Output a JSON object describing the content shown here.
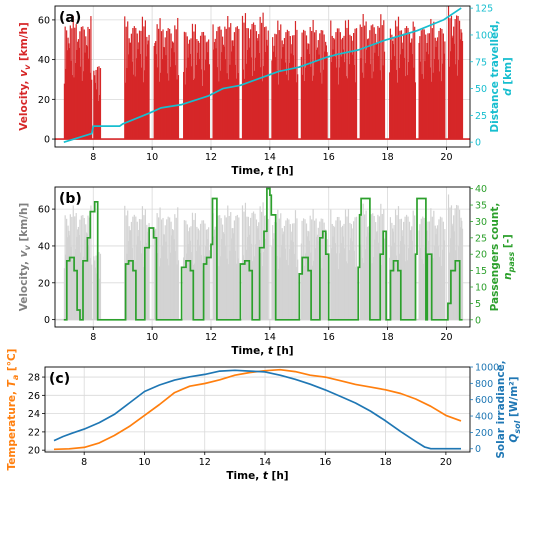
{
  "colors": {
    "velocity_bars": "#d62728",
    "distance_line": "#17becf",
    "velocity_grey": "#d3d3d3",
    "passengers": "#2ca02c",
    "temperature": "#ff7f0e",
    "irradiance": "#1f77b4",
    "grid": "#d9d9d9"
  },
  "chart_data": [
    {
      "type": "bar",
      "panel_label": "(a)",
      "xlabel": "Time, t [h]",
      "ylabel_left": "Velocity, v_v [km/h]",
      "ylabel_right": "Distance travelled, d [km]",
      "xlim": [
        6.7,
        20.8
      ],
      "ylim_left": [
        -4,
        67
      ],
      "ylim_right": [
        -4.5,
        127
      ],
      "xticks": [
        8,
        10,
        12,
        14,
        16,
        18,
        20
      ],
      "yticks_left": [
        0,
        20,
        40,
        60
      ],
      "yticks_right": [
        0,
        25,
        50,
        75,
        100,
        125
      ],
      "grid": true,
      "velocity_trips": [
        [
          7.0,
          7.95,
          62
        ],
        [
          8.0,
          8.25,
          40
        ],
        [
          9.05,
          9.9,
          62
        ],
        [
          10.05,
          10.9,
          61
        ],
        [
          11.05,
          11.95,
          59
        ],
        [
          12.05,
          12.95,
          62
        ],
        [
          13.05,
          13.95,
          64
        ],
        [
          14.05,
          14.95,
          60
        ],
        [
          15.05,
          15.95,
          60
        ],
        [
          16.05,
          16.95,
          61
        ],
        [
          17.05,
          17.9,
          63
        ],
        [
          18.05,
          18.95,
          62
        ],
        [
          19.05,
          19.95,
          61
        ],
        [
          20.05,
          20.55,
          68
        ]
      ],
      "distance_series": {
        "name": "Distance travelled",
        "points": [
          [
            7.0,
            0
          ],
          [
            7.95,
            8
          ],
          [
            8.0,
            15
          ],
          [
            8.9,
            15
          ],
          [
            9.0,
            17
          ],
          [
            9.9,
            27
          ],
          [
            10.3,
            32
          ],
          [
            11.0,
            35
          ],
          [
            11.9,
            43
          ],
          [
            12.4,
            50
          ],
          [
            13.0,
            53
          ],
          [
            13.9,
            62
          ],
          [
            14.3,
            66
          ],
          [
            15.0,
            70
          ],
          [
            15.9,
            79
          ],
          [
            16.3,
            82
          ],
          [
            17.0,
            86
          ],
          [
            17.9,
            95
          ],
          [
            18.4,
            99
          ],
          [
            19.0,
            104
          ],
          [
            19.9,
            114
          ],
          [
            20.5,
            125
          ]
        ]
      }
    },
    {
      "type": "line",
      "panel_label": "(b)",
      "xlabel": "Time, t [h]",
      "ylabel_left": "Velocity, v_v [km/h]",
      "ylabel_right": "Passengers count, n_pass [-]",
      "xlim": [
        6.7,
        20.8
      ],
      "ylim_left": [
        -4,
        72
      ],
      "ylim_right": [
        -2.2,
        40.5
      ],
      "xticks": [
        8,
        10,
        12,
        14,
        16,
        18,
        20
      ],
      "yticks_left": [
        0,
        20,
        40,
        60
      ],
      "yticks_right": [
        0,
        5,
        10,
        15,
        20,
        25,
        30,
        35,
        40
      ],
      "grid": true,
      "passenger_series": {
        "name": "Passengers count",
        "points": [
          [
            7.0,
            0
          ],
          [
            7.1,
            18
          ],
          [
            7.2,
            19
          ],
          [
            7.35,
            15
          ],
          [
            7.45,
            3
          ],
          [
            7.55,
            0
          ],
          [
            7.65,
            18
          ],
          [
            7.8,
            25
          ],
          [
            7.9,
            33
          ],
          [
            8.05,
            36
          ],
          [
            8.15,
            0
          ],
          [
            9.0,
            0
          ],
          [
            9.1,
            17
          ],
          [
            9.2,
            18
          ],
          [
            9.35,
            15
          ],
          [
            9.45,
            0
          ],
          [
            9.6,
            0
          ],
          [
            9.75,
            22
          ],
          [
            9.9,
            28
          ],
          [
            10.05,
            25
          ],
          [
            10.15,
            0
          ],
          [
            10.9,
            0
          ],
          [
            11.0,
            16
          ],
          [
            11.15,
            18
          ],
          [
            11.3,
            15
          ],
          [
            11.4,
            0
          ],
          [
            11.6,
            0
          ],
          [
            11.75,
            17
          ],
          [
            11.85,
            19
          ],
          [
            12.0,
            23
          ],
          [
            12.05,
            37
          ],
          [
            12.1,
            37
          ],
          [
            12.2,
            0
          ],
          [
            12.9,
            0
          ],
          [
            13.0,
            17
          ],
          [
            13.15,
            18
          ],
          [
            13.3,
            15
          ],
          [
            13.4,
            0
          ],
          [
            13.5,
            0
          ],
          [
            13.65,
            22
          ],
          [
            13.8,
            27
          ],
          [
            13.9,
            40
          ],
          [
            14.0,
            38
          ],
          [
            14.05,
            32
          ],
          [
            14.2,
            0
          ],
          [
            14.9,
            0
          ],
          [
            15.0,
            14
          ],
          [
            15.1,
            19
          ],
          [
            15.3,
            15
          ],
          [
            15.4,
            0
          ],
          [
            15.5,
            0
          ],
          [
            15.7,
            25
          ],
          [
            15.8,
            27
          ],
          [
            15.9,
            20
          ],
          [
            16.0,
            0
          ],
          [
            16.9,
            0
          ],
          [
            17.0,
            16
          ],
          [
            17.05,
            32
          ],
          [
            17.1,
            37
          ],
          [
            17.3,
            37
          ],
          [
            17.4,
            0
          ],
          [
            17.6,
            0
          ],
          [
            17.75,
            20
          ],
          [
            17.85,
            27
          ],
          [
            17.95,
            0
          ],
          [
            18.0,
            0
          ],
          [
            18.1,
            15
          ],
          [
            18.2,
            18
          ],
          [
            18.35,
            15
          ],
          [
            18.45,
            0
          ],
          [
            18.8,
            0
          ],
          [
            18.95,
            20
          ],
          [
            19.0,
            37
          ],
          [
            19.25,
            37
          ],
          [
            19.3,
            0
          ],
          [
            19.35,
            20
          ],
          [
            19.4,
            20
          ],
          [
            19.5,
            0
          ],
          [
            20.0,
            0
          ],
          [
            20.05,
            5
          ],
          [
            20.15,
            15
          ],
          [
            20.3,
            18
          ],
          [
            20.4,
            18
          ],
          [
            20.45,
            0
          ],
          [
            20.55,
            0
          ]
        ]
      }
    },
    {
      "type": "line",
      "panel_label": "(c)",
      "xlabel": "Time, t [h]",
      "ylabel_left": "Temperature, T_a [°C]",
      "ylabel_right": "Solar irradiance, Q_sol [W/m²]",
      "xlim": [
        6.7,
        20.8
      ],
      "ylim_left": [
        19.8,
        29.1
      ],
      "ylim_right": [
        -40,
        1000
      ],
      "xticks": [
        8,
        10,
        12,
        14,
        16,
        18,
        20
      ],
      "yticks_left": [
        20,
        22,
        24,
        26,
        28
      ],
      "yticks_right": [
        0,
        200,
        400,
        600,
        800,
        1000
      ],
      "grid": true,
      "series": [
        {
          "name": "Temperature",
          "points": [
            [
              7.0,
              20.1
            ],
            [
              7.5,
              20.15
            ],
            [
              8.0,
              20.3
            ],
            [
              8.5,
              20.8
            ],
            [
              9.0,
              21.6
            ],
            [
              9.5,
              22.6
            ],
            [
              10.0,
              23.8
            ],
            [
              10.5,
              25.0
            ],
            [
              11.0,
              26.3
            ],
            [
              11.5,
              27.0
            ],
            [
              12.0,
              27.3
            ],
            [
              12.5,
              27.7
            ],
            [
              13.0,
              28.2
            ],
            [
              13.5,
              28.5
            ],
            [
              14.0,
              28.7
            ],
            [
              14.5,
              28.8
            ],
            [
              15.0,
              28.6
            ],
            [
              15.5,
              28.2
            ],
            [
              16.0,
              28.0
            ],
            [
              16.5,
              27.6
            ],
            [
              17.0,
              27.2
            ],
            [
              17.5,
              26.9
            ],
            [
              18.0,
              26.6
            ],
            [
              18.5,
              26.2
            ],
            [
              19.0,
              25.6
            ],
            [
              19.5,
              24.8
            ],
            [
              20.0,
              23.8
            ],
            [
              20.5,
              23.2
            ]
          ]
        },
        {
          "name": "Solar irradiance",
          "points": [
            [
              7.0,
              100
            ],
            [
              7.3,
              150
            ],
            [
              7.6,
              190
            ],
            [
              8.0,
              240
            ],
            [
              8.5,
              320
            ],
            [
              9.0,
              420
            ],
            [
              9.5,
              560
            ],
            [
              10.0,
              700
            ],
            [
              10.5,
              780
            ],
            [
              11.0,
              840
            ],
            [
              11.5,
              880
            ],
            [
              12.0,
              910
            ],
            [
              12.5,
              950
            ],
            [
              13.0,
              960
            ],
            [
              13.5,
              950
            ],
            [
              14.0,
              940
            ],
            [
              14.5,
              900
            ],
            [
              15.0,
              850
            ],
            [
              15.5,
              790
            ],
            [
              16.0,
              720
            ],
            [
              16.5,
              640
            ],
            [
              17.0,
              560
            ],
            [
              17.5,
              460
            ],
            [
              18.0,
              340
            ],
            [
              18.5,
              210
            ],
            [
              19.0,
              90
            ],
            [
              19.3,
              20
            ],
            [
              19.5,
              0
            ],
            [
              20.5,
              0
            ]
          ]
        }
      ]
    }
  ]
}
